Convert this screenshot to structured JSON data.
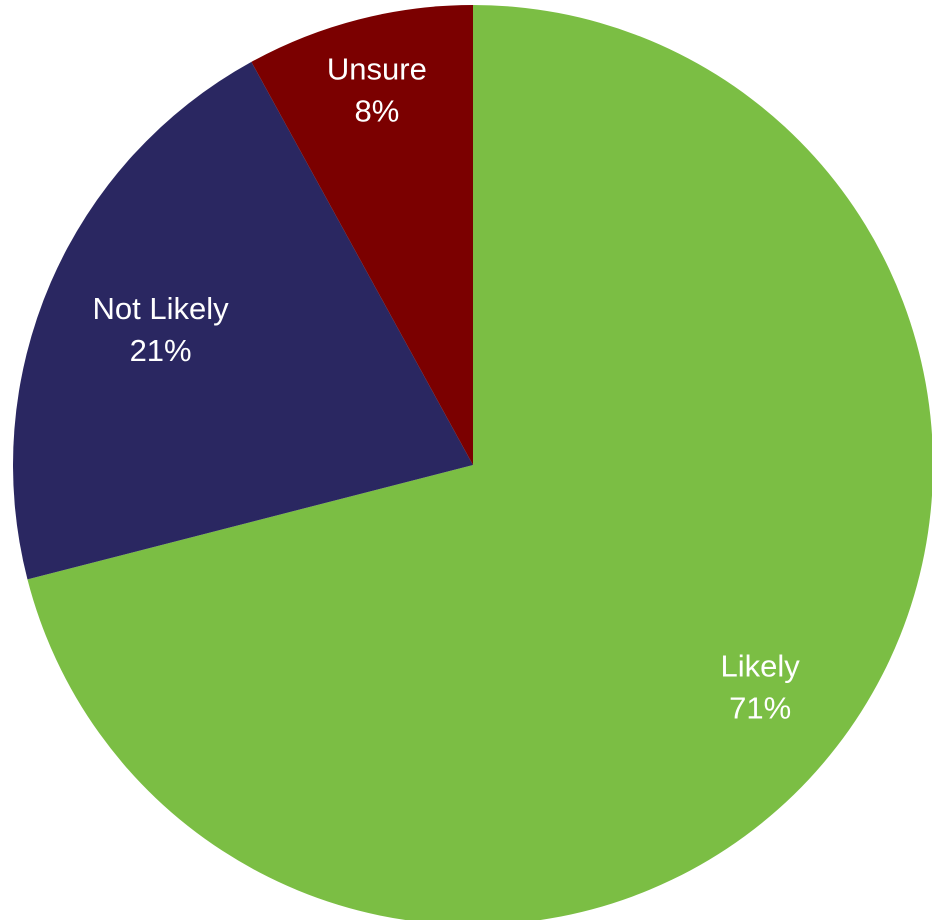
{
  "chart_data": {
    "type": "pie",
    "categories": [
      "Likely",
      "Not Likely",
      "Unsure"
    ],
    "values": [
      71,
      21,
      8
    ],
    "labels": [
      "71%",
      "21%",
      "8%"
    ],
    "colors": [
      "#7BBE44",
      "#2A2761",
      "#7B0000"
    ],
    "start_angle_deg_clockwise_from_top": 0,
    "direction": "clockwise",
    "legend": "none",
    "title": ""
  }
}
